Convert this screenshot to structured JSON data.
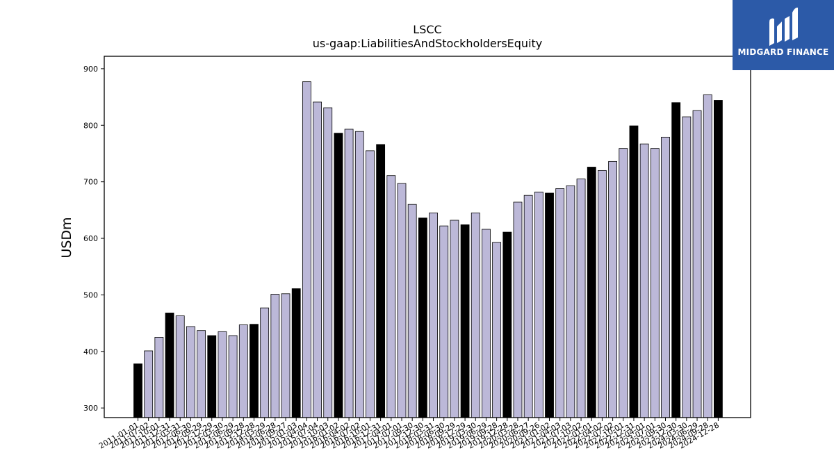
{
  "logo": {
    "text": "MIDGARD FINANCE",
    "icon": "midgard-logo-icon",
    "background": "#2c5aa8"
  },
  "chart_data": {
    "type": "bar",
    "title": "LSCC",
    "subtitle": "us-gaap:LiabilitiesAndStockholdersEquity",
    "xlabel": "",
    "ylabel": "USDm",
    "ylim": [
      283,
      922
    ],
    "yticks": [
      300,
      400,
      500,
      600,
      700,
      800,
      900
    ],
    "grid": false,
    "colors": {
      "quarterly": "#bcb8d8",
      "fiscal_year_end": "#000000",
      "edge": "#000000"
    },
    "categories": [
      "2011-01-01",
      "2011-07-02",
      "2011-10-01",
      "2011-12-31",
      "2012-03-31",
      "2012-06-30",
      "2012-09-29",
      "2012-12-29",
      "2013-03-30",
      "2013-06-29",
      "2013-09-28",
      "2013-12-28",
      "2014-03-29",
      "2014-06-28",
      "2014-09-27",
      "2015-01-03",
      "2015-04-04",
      "2015-07-04",
      "2015-10-03",
      "2016-01-02",
      "2016-04-02",
      "2016-07-02",
      "2016-10-01",
      "2016-12-31",
      "2017-04-01",
      "2017-07-01",
      "2017-09-30",
      "2017-12-30",
      "2018-03-31",
      "2018-06-30",
      "2018-09-29",
      "2018-12-29",
      "2019-03-30",
      "2019-06-29",
      "2019-09-28",
      "2019-12-28",
      "2020-03-28",
      "2020-06-27",
      "2020-09-26",
      "2021-01-02",
      "2021-04-03",
      "2021-07-03",
      "2021-10-02",
      "2022-01-01",
      "2022-04-02",
      "2022-07-02",
      "2022-10-01",
      "2022-12-31",
      "2023-04-01",
      "2023-07-01",
      "2023-09-30",
      "2023-12-30",
      "2024-03-30",
      "2024-06-29",
      "2024-09-28",
      "2024-12-28"
    ],
    "values": [
      378,
      401,
      425,
      468,
      463,
      444,
      437,
      428,
      435,
      428,
      447,
      448,
      477,
      501,
      502,
      511,
      877,
      841,
      831,
      786,
      793,
      789,
      755,
      766,
      711,
      697,
      660,
      636,
      645,
      622,
      632,
      624,
      645,
      616,
      593,
      611,
      664,
      676,
      682,
      680,
      688,
      693,
      705,
      726,
      720,
      736,
      759,
      799,
      767,
      759,
      779,
      840,
      815,
      826,
      854,
      844
    ],
    "fiscal_year_end": [
      true,
      false,
      false,
      true,
      false,
      false,
      false,
      true,
      false,
      false,
      false,
      true,
      false,
      false,
      false,
      true,
      false,
      false,
      false,
      true,
      false,
      false,
      false,
      true,
      false,
      false,
      false,
      true,
      false,
      false,
      false,
      true,
      false,
      false,
      false,
      true,
      false,
      false,
      false,
      true,
      false,
      false,
      false,
      true,
      false,
      false,
      false,
      true,
      false,
      false,
      false,
      true,
      false,
      false,
      false,
      true
    ]
  }
}
